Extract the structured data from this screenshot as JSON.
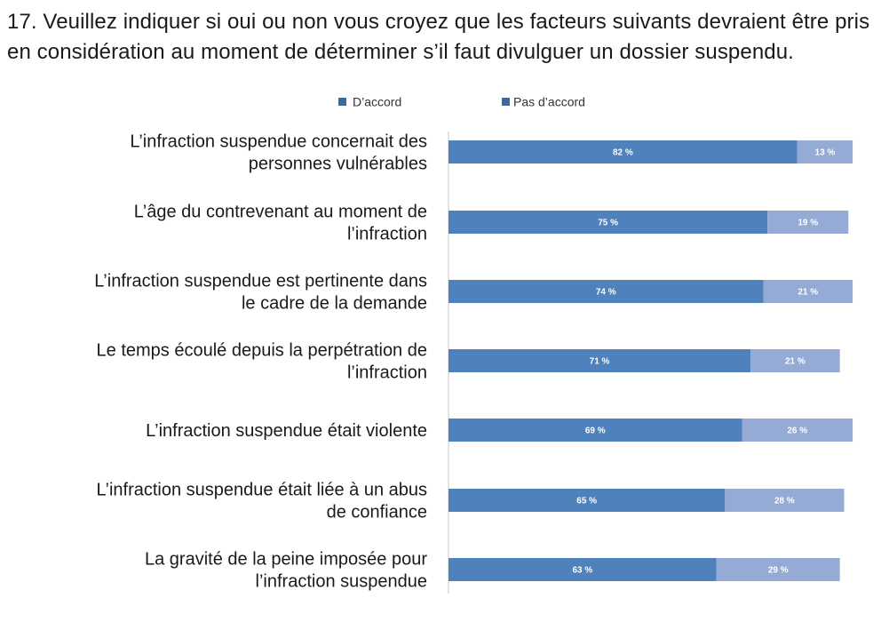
{
  "question": "17. Veuillez indiquer si oui ou non vous croyez que les facteurs suivants devraient être pris en considération au moment de déterminer s’il faut divulguer un dossier suspendu.",
  "colors": {
    "agree": "#4f81bd",
    "disagree": "#95abd5",
    "axis": "#c8c8c8",
    "legend_swatch": "#3c6a9e"
  },
  "chart_data": {
    "type": "bar",
    "orientation": "horizontal",
    "stacked": true,
    "xlim": [
      0,
      100
    ],
    "grid": false,
    "legend_position": "top",
    "categories": [
      [
        "L’infraction suspendue concernait des",
        "personnes vulnérables"
      ],
      [
        "L’âge du contrevenant au moment de",
        "l’infraction"
      ],
      [
        "L’infraction suspendue est pertinente dans",
        "le cadre de la demande"
      ],
      [
        "Le temps écoulé depuis la perpétration de",
        "l’infraction"
      ],
      [
        "L’infraction suspendue était violente"
      ],
      [
        "L’infraction suspendue était liée à un abus",
        "de confiance"
      ],
      [
        "La gravité de la peine imposée pour",
        "l’infraction suspendue"
      ]
    ],
    "series": [
      {
        "name": "D’accord",
        "values": [
          82,
          75,
          74,
          71,
          69,
          65,
          63
        ],
        "labels": [
          "82 %",
          "75 %",
          "74 %",
          "71 %",
          "69 %",
          "65 %",
          "63 %"
        ]
      },
      {
        "name": "Pas d’accord",
        "values": [
          13,
          19,
          21,
          21,
          26,
          28,
          29
        ],
        "labels": [
          "13 %",
          "19 %",
          "21 %",
          "21 %",
          "26 %",
          "28 %",
          "29 %"
        ]
      }
    ]
  }
}
